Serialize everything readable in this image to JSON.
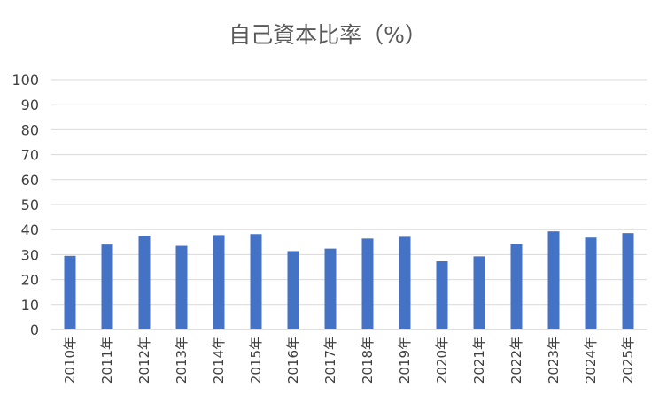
{
  "chart_data": {
    "type": "bar",
    "title": "自己資本比率（%）",
    "xlabel": "",
    "ylabel": "",
    "categories": [
      "2010年",
      "2011年",
      "2012年",
      "2013年",
      "2014年",
      "2015年",
      "2016年",
      "2017年",
      "2018年",
      "2019年",
      "2020年",
      "2021年",
      "2022年",
      "2023年",
      "2024年",
      "2025年"
    ],
    "values": [
      29.5,
      34,
      37.5,
      33.5,
      37.8,
      38.2,
      31.4,
      32.4,
      36.4,
      37.1,
      27.3,
      29.3,
      34.2,
      39.3,
      36.8,
      38.6
    ],
    "ylim": [
      0,
      100
    ],
    "yticks": [
      "0",
      "10",
      "20",
      "30",
      "40",
      "50",
      "60",
      "70",
      "80",
      "90",
      "100"
    ],
    "grid": true,
    "legend": "none",
    "colors": {
      "bar": "#4472C4",
      "grid": "#D9D9D9",
      "axis": "#BFBFBF"
    }
  }
}
